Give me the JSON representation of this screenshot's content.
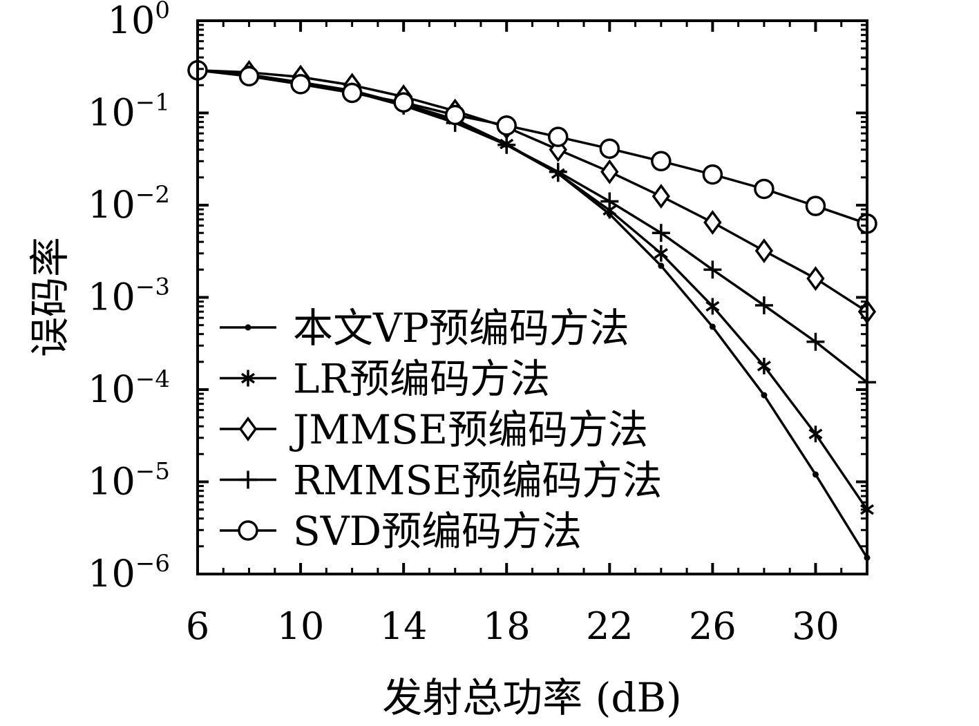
{
  "chart_data": {
    "type": "line",
    "xlabel": "发射总功率 (dB)",
    "ylabel": "误码率",
    "xlim": [
      6,
      32
    ],
    "ylim": [
      1e-06,
      1
    ],
    "y_scale": "log",
    "x_ticks": [
      6,
      10,
      14,
      18,
      22,
      26,
      30
    ],
    "x_tick_labels": [
      "6",
      "10",
      "14",
      "18",
      "22",
      "26",
      "30"
    ],
    "y_ticks": [
      {
        "base": "10",
        "exp": "0",
        "value": 1
      },
      {
        "base": "10",
        "exp": "−1",
        "value": 0.1
      },
      {
        "base": "10",
        "exp": "−2",
        "value": 0.01
      },
      {
        "base": "10",
        "exp": "−3",
        "value": 0.001
      },
      {
        "base": "10",
        "exp": "−4",
        "value": 0.0001
      },
      {
        "base": "10",
        "exp": "−5",
        "value": 1e-05
      },
      {
        "base": "10",
        "exp": "−6",
        "value": 1e-06
      }
    ],
    "grid": false,
    "legend_position": "bottom-left",
    "x": [
      6,
      8,
      10,
      12,
      14,
      16,
      18,
      20,
      22,
      24,
      26,
      28,
      30,
      32
    ],
    "series": [
      {
        "name": "本文VP预编码方法",
        "marker": "dot",
        "values": [
          0.29,
          0.255,
          0.21,
          0.17,
          0.12,
          0.082,
          0.045,
          0.022,
          0.008,
          0.0022,
          0.00048,
          8.7e-05,
          1.2e-05,
          1.5e-06
        ]
      },
      {
        "name": "LR预编码方法",
        "marker": "asterisk",
        "values": [
          0.29,
          0.26,
          0.215,
          0.175,
          0.125,
          0.085,
          0.046,
          0.022,
          0.0088,
          0.003,
          0.0008,
          0.00018,
          3.3e-05,
          5e-06
        ]
      },
      {
        "name": "JMMSE预编码方法",
        "marker": "diamond",
        "values": [
          0.29,
          0.275,
          0.245,
          0.2,
          0.15,
          0.105,
          0.07,
          0.04,
          0.023,
          0.0125,
          0.0065,
          0.0032,
          0.0016,
          0.0007
        ]
      },
      {
        "name": "RMMSE预编码方法",
        "marker": "plus",
        "values": [
          0.29,
          0.26,
          0.21,
          0.17,
          0.12,
          0.078,
          0.045,
          0.023,
          0.011,
          0.005,
          0.002,
          0.00082,
          0.00033,
          0.00012
        ]
      },
      {
        "name": "SVD预编码方法",
        "marker": "circle",
        "values": [
          0.29,
          0.25,
          0.205,
          0.165,
          0.13,
          0.095,
          0.073,
          0.055,
          0.041,
          0.03,
          0.0215,
          0.015,
          0.0098,
          0.0063
        ]
      }
    ]
  }
}
